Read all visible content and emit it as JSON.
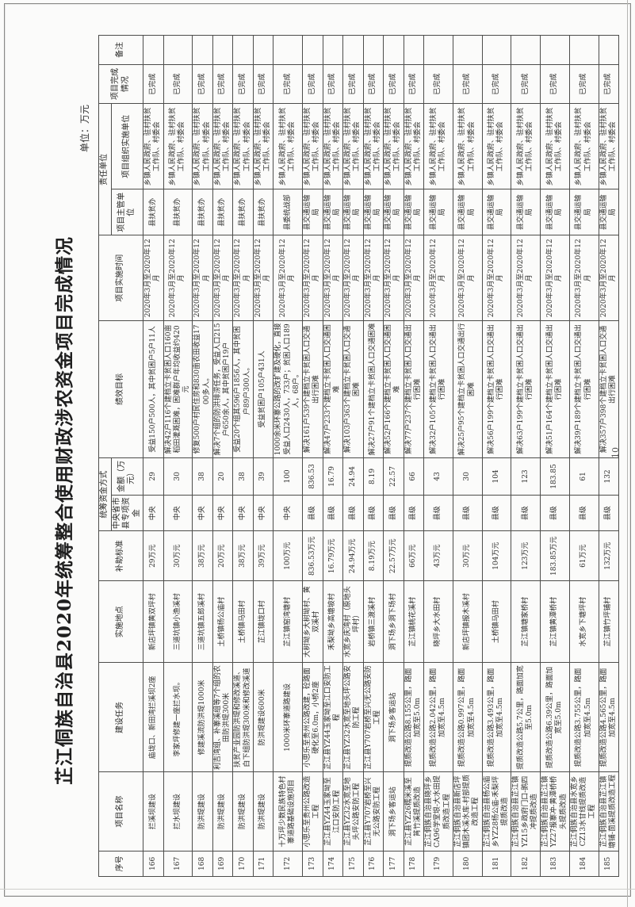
{
  "page": {
    "title": "芷江侗族自治县2020年统筹整合使用财政涉农资金项目完成情况",
    "unit_note": "单位：万元",
    "page_number": "10"
  },
  "table": {
    "headers": {
      "no": "序号",
      "name": "项目名称",
      "task": "建设任务",
      "location": "实施地点",
      "standard": "补助标准",
      "fund_group": "统筹资金方式",
      "source": "中央省市县专项资金",
      "amount": "金额（万元）",
      "goal": "绩效目标",
      "time": "项目实施时间",
      "duty_group": "责任单位",
      "supervisor": "项目主管单位",
      "implementer": "项目组织实施单位",
      "status": "项目完成情况",
      "remark": "备注"
    },
    "column_keys": [
      "no",
      "name",
      "task",
      "location",
      "standard",
      "source",
      "amount",
      "goal",
      "time",
      "supervisor",
      "implementer",
      "status",
      "remark"
    ],
    "rows": [
      {
        "no": "166",
        "name": "拦溪坝建设",
        "task": "庙垅口、新田湾拦溪坝2座",
        "location": "新店坪镇黄双坪村",
        "standard": "29万元",
        "source": "中央",
        "amount": "29",
        "goal": "受益150户500人，其中贫困户5户11人",
        "time": "2020年3月至2020年12月",
        "supervisor": "县扶贫办",
        "implementer": "乡镇人民政府、驻村扶贫工作队、村委会",
        "status": "已完成",
        "remark": ""
      },
      {
        "no": "167",
        "name": "拦水坝建设",
        "task": "李家坪修建一座拦水坝。",
        "location": "三道坑镇小渔溪村",
        "standard": "30万元",
        "source": "中央",
        "amount": "30",
        "goal": "解决42户116个建档立卡贫困人口160亩稻田灌溉困难，困难群户年均收益约420元",
        "time": "2020年3月至2020年12月",
        "supervisor": "县扶贫办",
        "implementer": "乡镇人民政府、驻村扶贫工作队、村委会",
        "status": "已完成",
        "remark": ""
      },
      {
        "no": "168",
        "name": "防洪堤建设",
        "task": "修建溪流防洪堤1000米",
        "location": "三道坑镇五郎溪村",
        "standard": "38万元",
        "source": "中央",
        "amount": "38",
        "goal": "修复500户村民住房和830亩农田收益1700多人。",
        "time": "2020年3月至2020年12月",
        "supervisor": "县扶贫办",
        "implementer": "乡镇人民政府、驻村扶贫工作队、村委会",
        "status": "已完成",
        "remark": ""
      },
      {
        "no": "169",
        "name": "防洪堤建设",
        "task": "利吉湾组、补寨溪组等7个组的农田防洪堤300米",
        "location": "土桥镇杨公庙村",
        "standard": "20万元",
        "source": "中央",
        "amount": "20",
        "goal": "解决7个组的防洪排涝任务，受益人口215户650余人，其中贫困户19户",
        "time": "2020年3月至2020年12月",
        "supervisor": "县扶贫办",
        "implementer": "乡镇人民政府、驻村扶贫工作队、村委会",
        "status": "已完成",
        "remark": ""
      },
      {
        "no": "170",
        "name": "防洪堤建设",
        "task": "扶贫产业园防洪堤和修改溪道、白下组防洪堤300米和修改溪道",
        "location": "土桥镇马田村",
        "standard": "38万元",
        "source": "中央",
        "amount": "38",
        "goal": "受益20个组其596户1856人，其中贫困户89户300人。",
        "time": "2020年3月至2020年12月",
        "supervisor": "县扶贫办",
        "implementer": "乡镇人民政府、驻村扶贫工作队、村委会",
        "status": "已完成",
        "remark": ""
      },
      {
        "no": "171",
        "name": "防洪堤建设",
        "task": "防洪堤建设600米",
        "location": "芷江镇垅口村",
        "standard": "39万元",
        "source": "中央",
        "amount": "39",
        "goal": "受益贫困户105户431人",
        "time": "2020年3月至2020年12月",
        "supervisor": "县扶贫办",
        "implementer": "乡镇人民政府、驻村扶贫工作队、村委会",
        "status": "已完成",
        "remark": ""
      },
      {
        "no": "172",
        "name": "十万坪少数民族特色村寨道路基础设施项目",
        "task": "1000米环寨道路建设",
        "location": "芷江镇窑湾塘村",
        "standard": "100万元",
        "source": "中央",
        "amount": "100",
        "goal": "1000余米环寨公路的改扩建及硬化，直接受益人口2430人，733户；贫困人口189人，68户。",
        "time": "2020年3月至2020年12月",
        "supervisor": "县委统战部",
        "implementer": "乡镇人民政府、驻村扶贫工作队、村委会",
        "status": "已完成",
        "remark": ""
      },
      {
        "no": "173",
        "name": "小思乐至贵州公路改造工程",
        "task": "小思乐至贵州公路改建，砼路面硬化至6.0m，小桥2座",
        "location": "大树坳乡大树坳村、黄双溪村",
        "standard": "836.53万元",
        "source": "县级",
        "amount": "836.53",
        "goal": "解决161户539个建档立卡贫困人口交通出行困难",
        "time": "2020年3月至2020年12月",
        "supervisor": "县交通运输局",
        "implementer": "乡镇人民政府、驻村扶贫工作队、村委会",
        "status": "已完成",
        "remark": ""
      },
      {
        "no": "174",
        "name": "芷江县YZ44玉家坳至江口安防工程",
        "task": "芷江县YZ44玉家坳至江口安防工程",
        "location": "禾梨坳乡高塘坡村",
        "standard": "16.79万元",
        "source": "县级",
        "amount": "16.79",
        "goal": "解决47户233个建档立卡贫困人口交通困难",
        "time": "2020年3月至2020年12月",
        "supervisor": "县交通运输局",
        "implementer": "乡镇人民政府、驻村扶贫工作队、村委会",
        "status": "已完成",
        "remark": ""
      },
      {
        "no": "175",
        "name": "芷江县YZ32水宽至地头坪公路安防工程",
        "task": "芷江县YZ32水宽至地头坪公路安防工程",
        "location": "水宽乡庆湾村（原地头坪村）",
        "standard": "24.94万元",
        "source": "县级",
        "amount": "24.94",
        "goal": "解决103户363个建档立卡贫困人口交通困难",
        "time": "2020年3月至2020年12月",
        "supervisor": "县交通运输局",
        "implementer": "乡镇人民政府、驻村扶贫工作队、村委会",
        "status": "已完成",
        "remark": ""
      },
      {
        "no": "176",
        "name": "芷江县Y707岩桥至兴无公路安防工程",
        "task": "芷江县Y707岩桥至兴无公路安防工程",
        "location": "岩桥镇三渡溪村",
        "standard": "8.19万元",
        "source": "县级",
        "amount": "8.19",
        "goal": "解决27户91个建档立卡贫困人口交通困难",
        "time": "2020年3月至2020年12月",
        "supervisor": "县交通运输局",
        "implementer": "乡镇人民政府、驻村扶贫工作队、村委会",
        "status": "已完成",
        "remark": ""
      },
      {
        "no": "177",
        "name": "洞下场乡客运站",
        "task": "洞下场乡客运站",
        "location": "洞下场乡洞下场村",
        "standard": "22.57万元",
        "source": "县级",
        "amount": "22.57",
        "goal": "解决52户166个建档立卡贫困人口交通困难",
        "time": "2020年3月至2020年12月",
        "supervisor": "县交通运输局",
        "implementer": "乡镇人民政府、驻村扶贫工作队、村委会",
        "status": "已完成",
        "remark": ""
      },
      {
        "no": "178",
        "name": "芷江县YZ26糯米溪至筲竹溪提质改造",
        "task": "提质改造公路8.155公里，路面加宽至5.0m",
        "location": "芷江镇桃花溪村",
        "standard": "66万元",
        "source": "县级",
        "amount": "66",
        "goal": "解决77户237个建档立卡贫困人口交通出行困难",
        "time": "2020年3月至2020年12月",
        "supervisor": "县交通运输局",
        "implementer": "乡镇人民政府、驻村扶贫工作队、村委会",
        "status": "已完成",
        "remark": ""
      },
      {
        "no": "179",
        "name": "芷江侗族自治县晓坪乡CA96学堂垠-大水田提质改造工程",
        "task": "提质改造公路2.042公里，路面加宽至4.5m",
        "location": "晓坪乡大水田村",
        "standard": "43万元",
        "source": "县级",
        "amount": "43",
        "goal": "解决32户105个建档立卡贫困人口交通出行困难",
        "time": "2020年3月至2020年12月",
        "supervisor": "县交通运输局",
        "implementer": "乡镇人民政府、驻村扶贫工作队、村委会",
        "status": "已完成",
        "remark": ""
      },
      {
        "no": "180",
        "name": "芷江侗族自治县新店坪镇团木溪水库-村部提质改造工程",
        "task": "提质改造公路0.997公里，路面加宽至4.5m",
        "location": "新店坪镇报木溪村",
        "standard": "30万元",
        "source": "县级",
        "amount": "30",
        "goal": "解决25户95个建档立卡贫困人口交通出行困难",
        "time": "2020年3月至2020年12月",
        "supervisor": "县交通运输局",
        "implementer": "乡镇人民政府、驻村扶贫工作队、村委会",
        "status": "已完成",
        "remark": ""
      },
      {
        "no": "181",
        "name": "芷江侗族自治县杨公庙乡YZ28杨公庙-禾梨坪提质改造",
        "task": "提质改造公路3.493公里，路面加宽至4.5m",
        "location": "土桥镇马田村",
        "standard": "104万元",
        "source": "县级",
        "amount": "104",
        "goal": "解决56户199个建档立卡贫困人口交通出行困难",
        "time": "2020年3月至2020年12月",
        "supervisor": "县交通运输局",
        "implementer": "乡镇人民政府、驻村扶贫工作队、村委会",
        "status": "已完成",
        "remark": ""
      },
      {
        "no": "182",
        "name": "芷江侗族自治县芷江镇YZ15乡政府门口-鹅四冲提质改造",
        "task": "提质改造公路5.7公里，路面加宽至5.0m",
        "location": "芷江镇塘家桥村",
        "standard": "123万元",
        "source": "县级",
        "amount": "123",
        "goal": "解决63户199个建档立卡贫困人口交通出行困难",
        "time": "2020年3月至2020年12月",
        "supervisor": "县交通运输局",
        "implementer": "乡镇人民政府、驻村扶贫工作队、村委会",
        "status": "已完成",
        "remark": ""
      },
      {
        "no": "183",
        "name": "芷江侗族自治县芷江镇YZ27报寨冲-黄潭桥桥头提质改造",
        "task": "提质改造公路6.39公里，路面加宽至5.0m",
        "location": "芷江镇黄潭桥村",
        "standard": "183.85万元",
        "source": "县级",
        "amount": "183.85",
        "goal": "解决51户164个建档立卡贫困人口交通出行困难",
        "time": "2020年3月至2020年12月",
        "supervisor": "县交通运输局",
        "implementer": "乡镇人民政府、驻村扶贫工作队、村委会",
        "status": "已完成",
        "remark": ""
      },
      {
        "no": "184",
        "name": "芷江侗族自治县水宽乡CZ13水甘线提质改造工程",
        "task": "提质改造公路3.755公里，路面加宽至4.5m",
        "location": "水宽乡下塘坪村",
        "standard": "61万元",
        "source": "县级",
        "amount": "61",
        "goal": "解决39户189个建档立卡贫困人口交通出行困难",
        "time": "2020年3月至2020年12月",
        "supervisor": "县交通运输局",
        "implementer": "乡镇人民政府、驻村扶贫工作队、村委会",
        "status": "已完成",
        "remark": ""
      },
      {
        "no": "185",
        "name": "芷江侗族自治县芷江镇塘铺-茴溪提质改造工程",
        "task": "提质改造公路4.565公里，路面加宽至4.5m",
        "location": "芷江镇竹坪铺村",
        "standard": "132万元",
        "source": "县级",
        "amount": "132",
        "goal": "解决357户398个建档立卡贫困人口交通出行困难",
        "time": "2020年3月至2020年12月",
        "supervisor": "县交通运输局",
        "implementer": "乡镇人民政府、驻村扶贫工作队、村委会",
        "status": "已完成",
        "remark": ""
      }
    ]
  }
}
